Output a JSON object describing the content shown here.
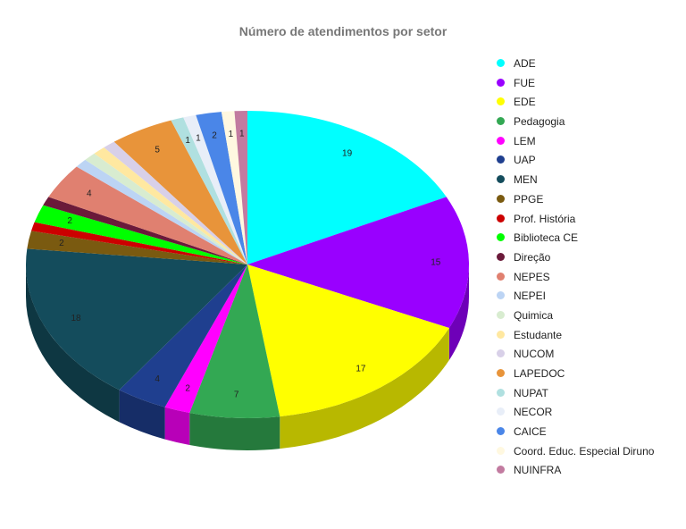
{
  "chart_data": {
    "type": "pie",
    "title": "Número de atendimentos por setor",
    "categories": [
      "ADE",
      "FUE",
      "EDE",
      "Pedagogia",
      "LEM",
      "UAP",
      "MEN",
      "PPGE",
      "Prof. História",
      "Biblioteca CE",
      "Direção",
      "NEPES",
      "NEPEI",
      "Quimica",
      "Estudante",
      "NUCOM",
      "LAPEDOC",
      "NUPAT",
      "NECOR",
      "CAICE",
      "Coord. Educ. Especial Diruno",
      "NUINFRA"
    ],
    "values": [
      19,
      15,
      17,
      7,
      2,
      4,
      18,
      2,
      1,
      2,
      1,
      4,
      1,
      1,
      1,
      1,
      5,
      1,
      1,
      2,
      1,
      1
    ],
    "value_labels": [
      "19",
      "15",
      "17",
      "7",
      "2",
      "4",
      "18",
      "2",
      null,
      "2",
      null,
      "4",
      null,
      null,
      null,
      null,
      "5",
      "1",
      "1",
      "2",
      "1",
      "1"
    ],
    "colors": [
      "#00ffff",
      "#9900ff",
      "#ffff00",
      "#33a853",
      "#ff00ff",
      "#1f3f8f",
      "#144c5c",
      "#7a5a10",
      "#cc0000",
      "#00ff00",
      "#6b1a3a",
      "#e08070",
      "#bcd4f4",
      "#d8ecd0",
      "#ffe8a0",
      "#d8d0e8",
      "#e8943a",
      "#b0e0e0",
      "#e8eef8",
      "#4a86e8",
      "#fff8e0",
      "#c27ba0"
    ]
  }
}
